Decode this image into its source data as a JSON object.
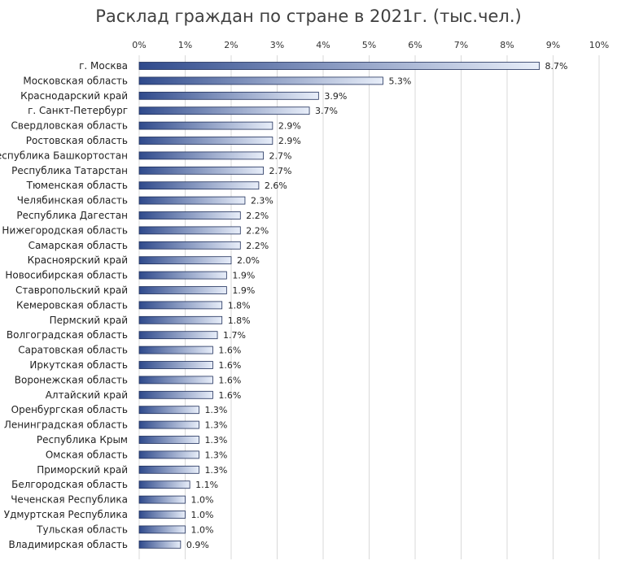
{
  "chart_data": {
    "type": "bar",
    "orientation": "horizontal",
    "title": "Расклад граждан по стране в 2021г. (тыс.чел.)",
    "xlabel": "",
    "ylabel": "",
    "xlim": [
      0,
      10
    ],
    "x_ticks": [
      "0%",
      "1%",
      "2%",
      "3%",
      "4%",
      "5%",
      "6%",
      "7%",
      "8%",
      "9%",
      "10%"
    ],
    "x_axis_position": "top",
    "grid": true,
    "legend": "none",
    "bar_gradient": [
      "#2f4a8c",
      "#e8eef9"
    ],
    "categories": [
      "г. Москва",
      "Московская область",
      "Краснодарский край",
      "г. Санкт-Петербург",
      "Свердловская область",
      "Ростовская область",
      "Республика Башкортостан",
      "Республика Татарстан",
      "Тюменская область",
      "Челябинская область",
      "Республика Дагестан",
      "Нижегородская область",
      "Самарская область",
      "Красноярский край",
      "Новосибирская область",
      "Ставропольский край",
      "Кемеровская область",
      "Пермский край",
      "Волгоградская область",
      "Саратовская область",
      "Иркутская область",
      "Воронежская область",
      "Алтайский край",
      "Оренбургская область",
      "Ленинградская область",
      "Республика Крым",
      "Омская область",
      "Приморский край",
      "Белгородская область",
      "Чеченская Республика",
      "Удмуртская Республика",
      "Тульская область",
      "Владимирская область"
    ],
    "values": [
      8.7,
      5.3,
      3.9,
      3.7,
      2.9,
      2.9,
      2.7,
      2.7,
      2.6,
      2.3,
      2.2,
      2.2,
      2.2,
      2.0,
      1.9,
      1.9,
      1.8,
      1.8,
      1.7,
      1.6,
      1.6,
      1.6,
      1.6,
      1.3,
      1.3,
      1.3,
      1.3,
      1.3,
      1.1,
      1.0,
      1.0,
      1.0,
      0.9
    ],
    "data_labels": [
      "8.7%",
      "5.3%",
      "3.9%",
      "3.7%",
      "2.9%",
      "2.9%",
      "2.7%",
      "2.7%",
      "2.6%",
      "2.3%",
      "2.2%",
      "2.2%",
      "2.2%",
      "2.0%",
      "1.9%",
      "1.9%",
      "1.8%",
      "1.8%",
      "1.7%",
      "1.6%",
      "1.6%",
      "1.6%",
      "1.6%",
      "1.3%",
      "1.3%",
      "1.3%",
      "1.3%",
      "1.3%",
      "1.1%",
      "1.0%",
      "1.0%",
      "1.0%",
      "0.9%"
    ]
  }
}
